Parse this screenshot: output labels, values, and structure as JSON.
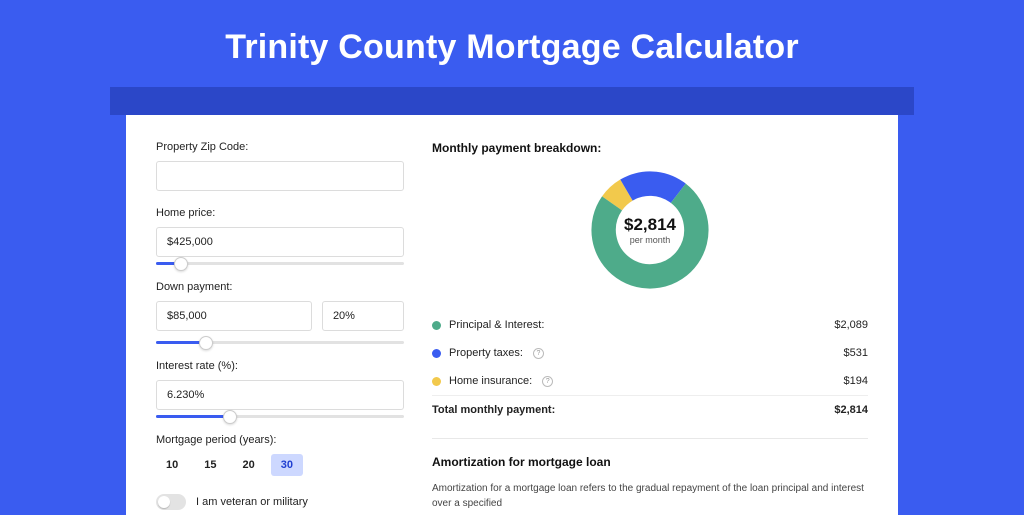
{
  "page": {
    "title": "Trinity County Mortgage Calculator",
    "background_color": "#3a5cf0",
    "banner_color": "#2b47c8"
  },
  "form": {
    "zip": {
      "label": "Property Zip Code:",
      "value": ""
    },
    "home_price": {
      "label": "Home price:",
      "value": "$425,000",
      "slider_fill_pct": 10
    },
    "down_payment": {
      "label": "Down payment:",
      "amount_value": "$85,000",
      "percent_value": "20%",
      "slider_fill_pct": 20
    },
    "interest_rate": {
      "label": "Interest rate (%):",
      "value": "6.230%",
      "slider_fill_pct": 30
    },
    "period": {
      "label": "Mortgage period (years):",
      "options": [
        "10",
        "15",
        "20",
        "30"
      ],
      "selected": "30"
    },
    "veteran": {
      "label": "I am veteran or military",
      "checked": false
    }
  },
  "breakdown": {
    "title": "Monthly payment breakdown:",
    "center_value": "$2,814",
    "center_sub": "per month",
    "donut": {
      "segments": [
        {
          "key": "principal_interest",
          "value": 2089,
          "color": "#4eab8a",
          "pct": 74.3
        },
        {
          "key": "property_taxes",
          "value": 531,
          "color": "#3a5cf0",
          "pct": 18.9
        },
        {
          "key": "home_insurance",
          "value": 194,
          "color": "#f2c94c",
          "pct": 6.8
        }
      ],
      "stroke_width": 20
    },
    "items": [
      {
        "label": "Principal & Interest:",
        "value": "$2,089",
        "color": "#4eab8a",
        "info": false
      },
      {
        "label": "Property taxes:",
        "value": "$531",
        "color": "#3a5cf0",
        "info": true
      },
      {
        "label": "Home insurance:",
        "value": "$194",
        "color": "#f2c94c",
        "info": true
      }
    ],
    "total": {
      "label": "Total monthly payment:",
      "value": "$2,814"
    }
  },
  "amortization": {
    "title": "Amortization for mortgage loan",
    "text": "Amortization for a mortgage loan refers to the gradual repayment of the loan principal and interest over a specified"
  },
  "colors": {
    "accent": "#3a5cf0",
    "period_active_bg": "#cdd8ff",
    "period_active_fg": "#1f3fd1"
  }
}
